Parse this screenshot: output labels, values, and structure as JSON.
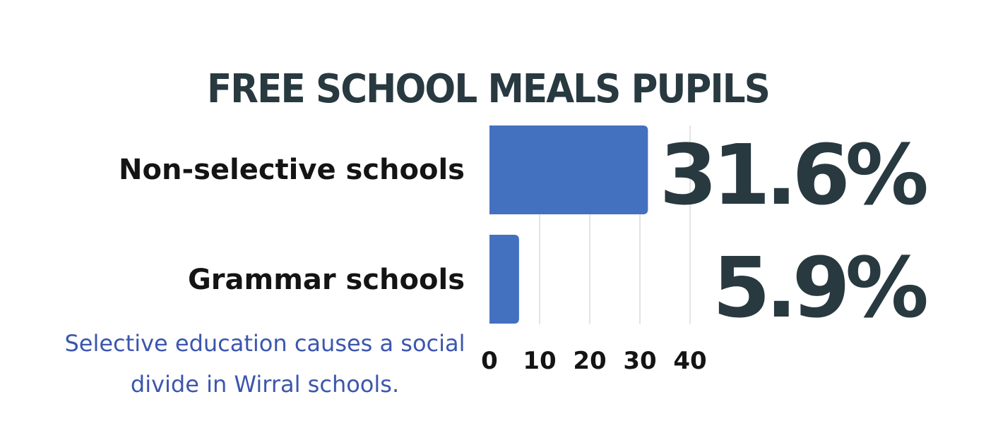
{
  "chart_data": {
    "type": "bar",
    "orientation": "horizontal",
    "title": "FREE SCHOOL MEALS PUPILS",
    "categories": [
      "Non-selective schools",
      "Grammar schools"
    ],
    "values": [
      31.6,
      5.9
    ],
    "value_labels": [
      "31.6%",
      "5.9%"
    ],
    "xlim": [
      0,
      40
    ],
    "xticks": [
      0,
      10,
      20,
      30,
      40
    ],
    "xtick_labels": [
      "0",
      "10",
      "20",
      "30",
      "40"
    ],
    "xlabel": "",
    "ylabel": "",
    "grid": true,
    "legend": "none",
    "bar_color": "#4470c0",
    "annotation": "Selective education causes a social divide in Wirral schools."
  }
}
